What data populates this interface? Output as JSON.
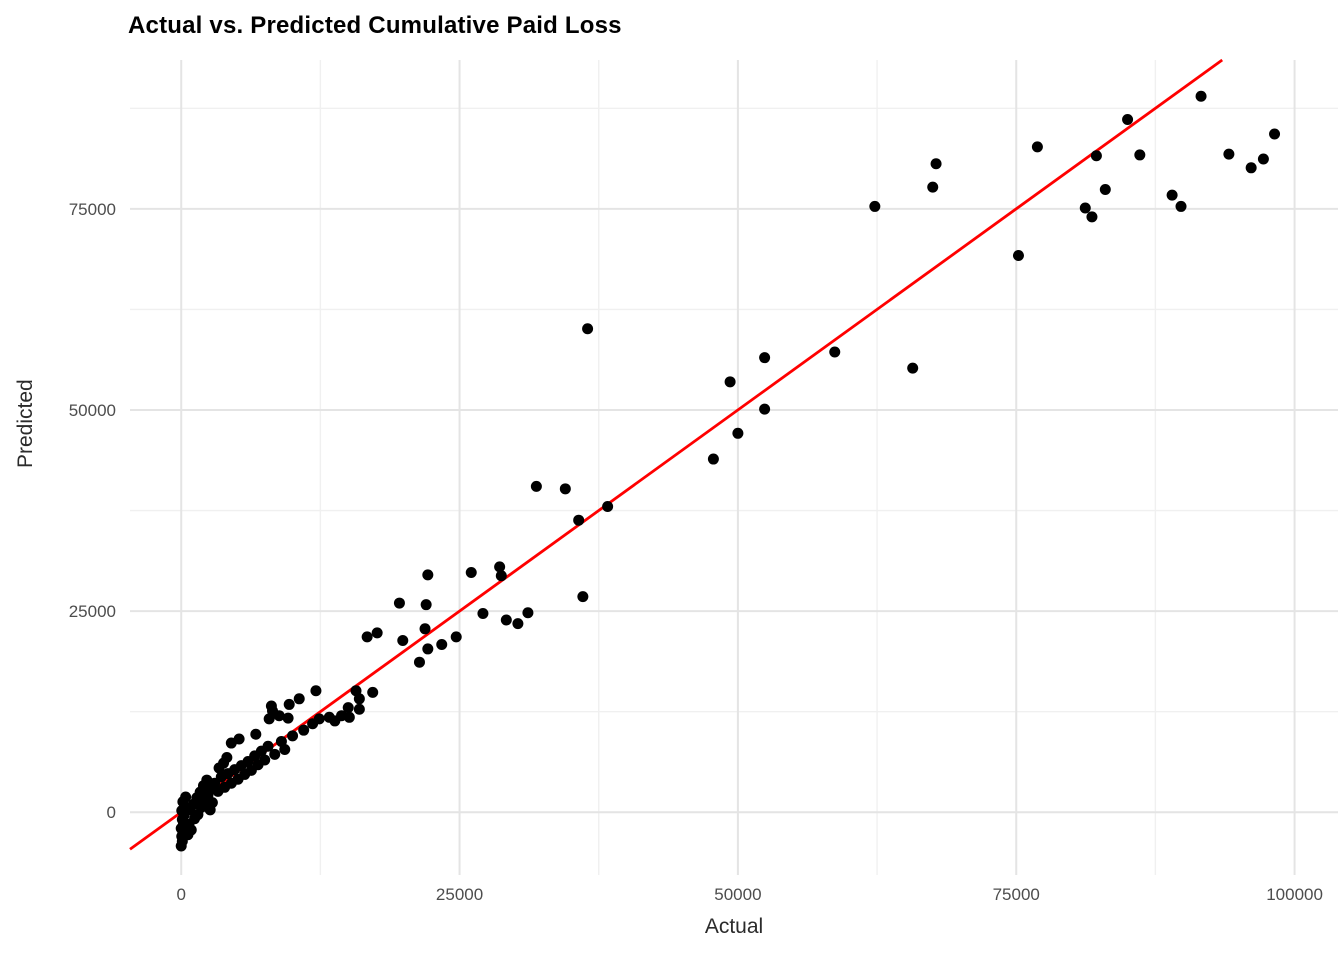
{
  "title": "Actual vs. Predicted Cumulative Paid Loss",
  "chart_data": {
    "type": "scatter",
    "title": "Actual vs. Predicted Cumulative Paid Loss",
    "xlabel": "Actual",
    "ylabel": "Predicted",
    "xlim": [
      -4600,
      103900
    ],
    "ylim": [
      -7800,
      93500
    ],
    "x_ticks": [
      0,
      25000,
      50000,
      75000,
      100000
    ],
    "y_ticks": [
      0,
      25000,
      50000,
      75000
    ],
    "x_minor_ticks": [
      12500,
      37500,
      62500,
      87500
    ],
    "y_minor_ticks": [
      12500,
      37500,
      62500,
      87500
    ],
    "grid": "major+minor",
    "legend": "none",
    "point_color": "#000000",
    "point_radius": 5.5,
    "reference_line": {
      "type": "identity",
      "slope": 1,
      "intercept": 0,
      "color": "#ff0000",
      "width": 2.8
    },
    "colors": {
      "background": "#ffffff",
      "major_grid": "#e4e4e4",
      "minor_grid": "#f0f0f0",
      "tick_label": "#4d4d4d",
      "axis_title": "#2b2b2b",
      "title": "#000000"
    },
    "points": [
      [
        0,
        -4200
      ],
      [
        100,
        -3600
      ],
      [
        50,
        -3000
      ],
      [
        150,
        -2500
      ],
      [
        0,
        -2000
      ],
      [
        200,
        -1500
      ],
      [
        100,
        -900
      ],
      [
        250,
        -400
      ],
      [
        50,
        200
      ],
      [
        300,
        700
      ],
      [
        150,
        1300
      ],
      [
        400,
        1900
      ],
      [
        600,
        -2800
      ],
      [
        900,
        -2200
      ],
      [
        700,
        -1500
      ],
      [
        1200,
        -800
      ],
      [
        1500,
        -300
      ],
      [
        800,
        300
      ],
      [
        1800,
        600
      ],
      [
        1100,
        1000
      ],
      [
        2100,
        1400
      ],
      [
        1400,
        1800
      ],
      [
        2400,
        2100
      ],
      [
        1700,
        2500
      ],
      [
        2700,
        2900
      ],
      [
        2000,
        3300
      ],
      [
        3000,
        3600
      ],
      [
        2300,
        4000
      ],
      [
        2800,
        1200
      ],
      [
        2600,
        300
      ],
      [
        3300,
        2600
      ],
      [
        3600,
        4400
      ],
      [
        3900,
        3100
      ],
      [
        4200,
        4800
      ],
      [
        4500,
        3600
      ],
      [
        4500,
        8600
      ],
      [
        4800,
        5300
      ],
      [
        5100,
        4100
      ],
      [
        5200,
        9100
      ],
      [
        5400,
        5800
      ],
      [
        5700,
        4700
      ],
      [
        6000,
        6300
      ],
      [
        3400,
        5500
      ],
      [
        3800,
        6100
      ],
      [
        4100,
        6800
      ],
      [
        6300,
        5200
      ],
      [
        6600,
        7000
      ],
      [
        6700,
        9700
      ],
      [
        6900,
        5900
      ],
      [
        7200,
        7600
      ],
      [
        7500,
        6500
      ],
      [
        7900,
        11600
      ],
      [
        7800,
        8200
      ],
      [
        8100,
        13200
      ],
      [
        8200,
        12600
      ],
      [
        8400,
        7200
      ],
      [
        8800,
        12000
      ],
      [
        9000,
        8800
      ],
      [
        9300,
        7800
      ],
      [
        9600,
        11700
      ],
      [
        9700,
        13400
      ],
      [
        10000,
        9500
      ],
      [
        10600,
        14100
      ],
      [
        11000,
        10200
      ],
      [
        11800,
        11000
      ],
      [
        12100,
        15100
      ],
      [
        12400,
        11600
      ],
      [
        13300,
        11800
      ],
      [
        13800,
        11350
      ],
      [
        14400,
        12000
      ],
      [
        15000,
        13000
      ],
      [
        15100,
        11800
      ],
      [
        15700,
        15100
      ],
      [
        16000,
        14100
      ],
      [
        16000,
        12800
      ],
      [
        17200,
        14900
      ],
      [
        16700,
        21800
      ],
      [
        17600,
        22300
      ],
      [
        19600,
        26000
      ],
      [
        19900,
        21350
      ],
      [
        21400,
        18650
      ],
      [
        21900,
        22800
      ],
      [
        22000,
        25800
      ],
      [
        22150,
        29500
      ],
      [
        22150,
        20300
      ],
      [
        23400,
        20850
      ],
      [
        24700,
        21800
      ],
      [
        26050,
        29800
      ],
      [
        27100,
        24700
      ],
      [
        28600,
        30500
      ],
      [
        28750,
        29400
      ],
      [
        29200,
        23900
      ],
      [
        30240,
        23450
      ],
      [
        31140,
        24800
      ],
      [
        36075,
        26800
      ],
      [
        31900,
        40500
      ],
      [
        34500,
        40200
      ],
      [
        35700,
        36300
      ],
      [
        38300,
        38000
      ],
      [
        36500,
        60100
      ],
      [
        47800,
        43900
      ],
      [
        49300,
        53500
      ],
      [
        50000,
        47100
      ],
      [
        52400,
        50100
      ],
      [
        52400,
        56500
      ],
      [
        58700,
        57200
      ],
      [
        65700,
        55200
      ],
      [
        62300,
        75300
      ],
      [
        67500,
        77700
      ],
      [
        67800,
        80600
      ],
      [
        75200,
        69200
      ],
      [
        76900,
        82700
      ],
      [
        81200,
        75100
      ],
      [
        81800,
        74000
      ],
      [
        82200,
        81600
      ],
      [
        83000,
        77400
      ],
      [
        85000,
        86100
      ],
      [
        86100,
        81700
      ],
      [
        89000,
        76700
      ],
      [
        89800,
        75300
      ],
      [
        91600,
        89000
      ],
      [
        94100,
        81800
      ],
      [
        96100,
        80100
      ],
      [
        97200,
        81200
      ],
      [
        98200,
        84300
      ]
    ]
  }
}
